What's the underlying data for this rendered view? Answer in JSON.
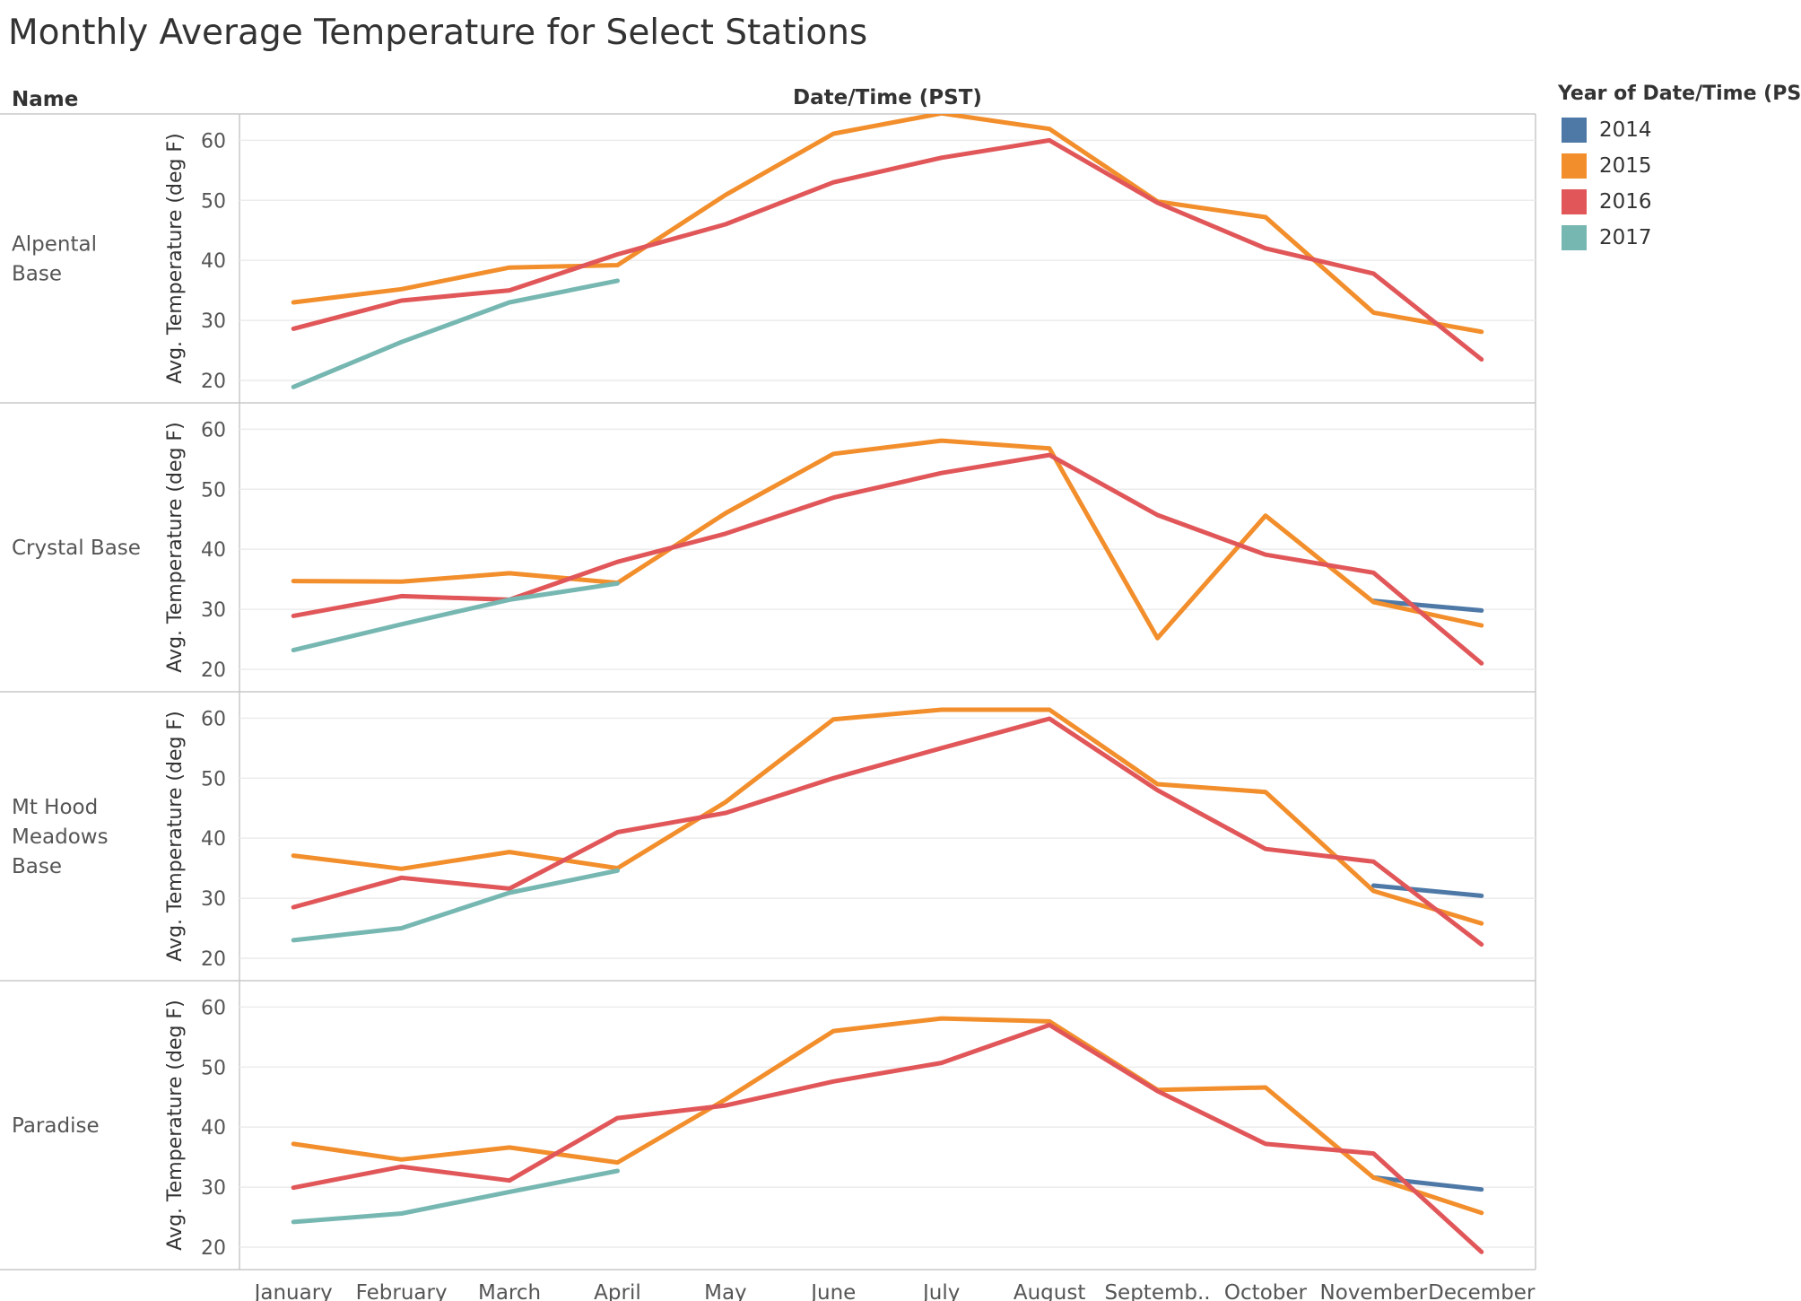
{
  "title": "Monthly Average Temperature for Select Stations",
  "header": {
    "row_title": "Name",
    "column_title": "Date/Time (PST)"
  },
  "legend": {
    "title": "Year of Date/Time (PST)",
    "items": [
      {
        "label": "2014",
        "color": "#4e79a7"
      },
      {
        "label": "2015",
        "color": "#f28e2b"
      },
      {
        "label": "2016",
        "color": "#e15759"
      },
      {
        "label": "2017",
        "color": "#76b7b2"
      }
    ]
  },
  "chart_data": {
    "type": "line",
    "categories": [
      "January",
      "February",
      "March",
      "April",
      "May",
      "June",
      "July",
      "August",
      "Septemb..",
      "October",
      "November",
      "December"
    ],
    "ylabel": "Avg. Temperature (deg F)",
    "yticks": [
      20,
      30,
      40,
      50,
      60
    ],
    "ylim": [
      18.5,
      62
    ],
    "grid": true,
    "legend_position": "top-right",
    "panels": [
      {
        "name": "Alpental\nBase",
        "series": [
          {
            "name": "2015",
            "values": [
              33.0,
              35.2,
              38.8,
              39.2,
              50.9,
              61.1,
              64.5,
              61.9,
              49.8,
              47.2,
              31.3,
              28.1
            ]
          },
          {
            "name": "2016",
            "values": [
              28.6,
              33.3,
              35.0,
              41.0,
              46.0,
              53.0,
              57.1,
              60.0,
              49.6,
              42.0,
              37.8,
              23.5
            ]
          },
          {
            "name": "2017",
            "values": [
              18.9,
              26.4,
              33.0,
              36.6,
              null,
              null,
              null,
              null,
              null,
              null,
              null,
              null
            ]
          }
        ]
      },
      {
        "name": "Crystal Base",
        "series": [
          {
            "name": "2014",
            "values": [
              null,
              null,
              null,
              null,
              null,
              null,
              null,
              null,
              null,
              null,
              31.4,
              29.8
            ]
          },
          {
            "name": "2015",
            "values": [
              34.7,
              34.6,
              36.0,
              34.4,
              46.0,
              55.9,
              58.1,
              56.8,
              25.2,
              45.6,
              31.2,
              27.3
            ]
          },
          {
            "name": "2016",
            "values": [
              28.9,
              32.2,
              31.6,
              37.9,
              42.6,
              48.6,
              52.7,
              55.7,
              45.7,
              39.1,
              36.1,
              21.0
            ]
          },
          {
            "name": "2017",
            "values": [
              23.2,
              27.5,
              31.6,
              34.3,
              null,
              null,
              null,
              null,
              null,
              null,
              null,
              null
            ]
          }
        ]
      },
      {
        "name": "Mt Hood\nMeadows\nBase",
        "series": [
          {
            "name": "2014",
            "values": [
              null,
              null,
              null,
              null,
              null,
              null,
              null,
              null,
              null,
              null,
              32.1,
              30.4
            ]
          },
          {
            "name": "2015",
            "values": [
              37.1,
              34.9,
              37.7,
              35.0,
              46.0,
              59.8,
              61.4,
              61.4,
              49.0,
              47.7,
              31.2,
              25.8
            ]
          },
          {
            "name": "2016",
            "values": [
              28.5,
              33.4,
              31.6,
              41.0,
              44.2,
              50.0,
              55.0,
              59.9,
              48.0,
              38.2,
              36.1,
              22.3
            ]
          },
          {
            "name": "2017",
            "values": [
              23.0,
              25.0,
              30.9,
              34.6,
              null,
              null,
              null,
              null,
              null,
              null,
              null,
              null
            ]
          }
        ]
      },
      {
        "name": "Paradise",
        "series": [
          {
            "name": "2014",
            "values": [
              null,
              null,
              null,
              null,
              null,
              null,
              null,
              null,
              null,
              null,
              31.6,
              29.6
            ]
          },
          {
            "name": "2015",
            "values": [
              37.2,
              34.6,
              36.6,
              34.1,
              44.6,
              56.0,
              58.1,
              57.6,
              46.2,
              46.6,
              31.6,
              25.7
            ]
          },
          {
            "name": "2016",
            "values": [
              29.9,
              33.4,
              31.1,
              41.5,
              43.6,
              47.6,
              50.7,
              57.0,
              46.0,
              37.2,
              35.6,
              19.2
            ]
          },
          {
            "name": "2017",
            "values": [
              24.2,
              25.6,
              29.2,
              32.7,
              null,
              null,
              null,
              null,
              null,
              null,
              null,
              null
            ]
          }
        ]
      }
    ]
  }
}
